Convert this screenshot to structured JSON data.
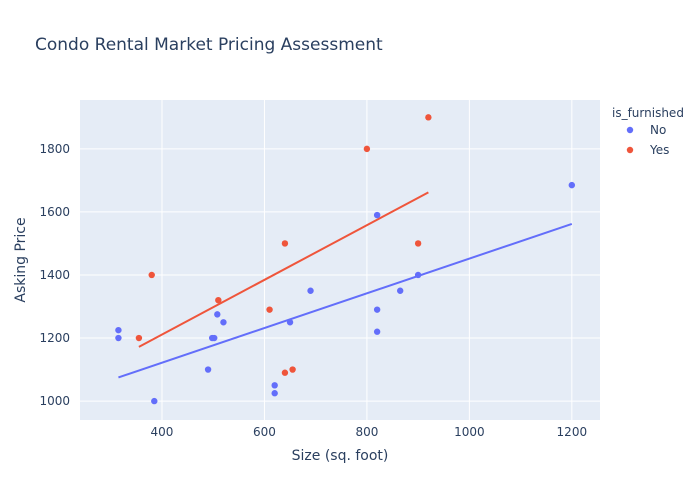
{
  "chart_data": {
    "type": "scatter",
    "title": "Condo Rental Market Pricing Assessment",
    "xlabel": "Size (sq. foot)",
    "ylabel": "Asking Price",
    "xlim": [
      240,
      1255
    ],
    "ylim": [
      940,
      1955
    ],
    "xticks": [
      400,
      600,
      800,
      1000,
      1200
    ],
    "yticks": [
      1000,
      1200,
      1400,
      1600,
      1800
    ],
    "grid": true,
    "legend_title": "is_furnished",
    "legend_position": "top-right",
    "series": [
      {
        "name": "No",
        "color": "#636efa",
        "points": [
          {
            "x": 315,
            "y": 1225
          },
          {
            "x": 315,
            "y": 1200
          },
          {
            "x": 385,
            "y": 1000
          },
          {
            "x": 490,
            "y": 1100
          },
          {
            "x": 498,
            "y": 1200
          },
          {
            "x": 502,
            "y": 1200
          },
          {
            "x": 508,
            "y": 1275
          },
          {
            "x": 520,
            "y": 1250
          },
          {
            "x": 620,
            "y": 1050
          },
          {
            "x": 620,
            "y": 1025
          },
          {
            "x": 650,
            "y": 1250
          },
          {
            "x": 690,
            "y": 1350
          },
          {
            "x": 820,
            "y": 1590
          },
          {
            "x": 820,
            "y": 1290
          },
          {
            "x": 820,
            "y": 1220
          },
          {
            "x": 865,
            "y": 1350
          },
          {
            "x": 900,
            "y": 1400
          },
          {
            "x": 1200,
            "y": 1685
          }
        ],
        "trendline": [
          {
            "x": 315,
            "y": 1075
          },
          {
            "x": 1200,
            "y": 1562
          }
        ]
      },
      {
        "name": "Yes",
        "color": "#ef553b",
        "points": [
          {
            "x": 355,
            "y": 1200
          },
          {
            "x": 380,
            "y": 1400
          },
          {
            "x": 510,
            "y": 1320
          },
          {
            "x": 610,
            "y": 1290
          },
          {
            "x": 640,
            "y": 1500
          },
          {
            "x": 640,
            "y": 1090
          },
          {
            "x": 655,
            "y": 1100
          },
          {
            "x": 800,
            "y": 1800
          },
          {
            "x": 900,
            "y": 1500
          },
          {
            "x": 920,
            "y": 1900
          }
        ],
        "trendline": [
          {
            "x": 355,
            "y": 1172
          },
          {
            "x": 920,
            "y": 1662
          }
        ]
      }
    ]
  }
}
